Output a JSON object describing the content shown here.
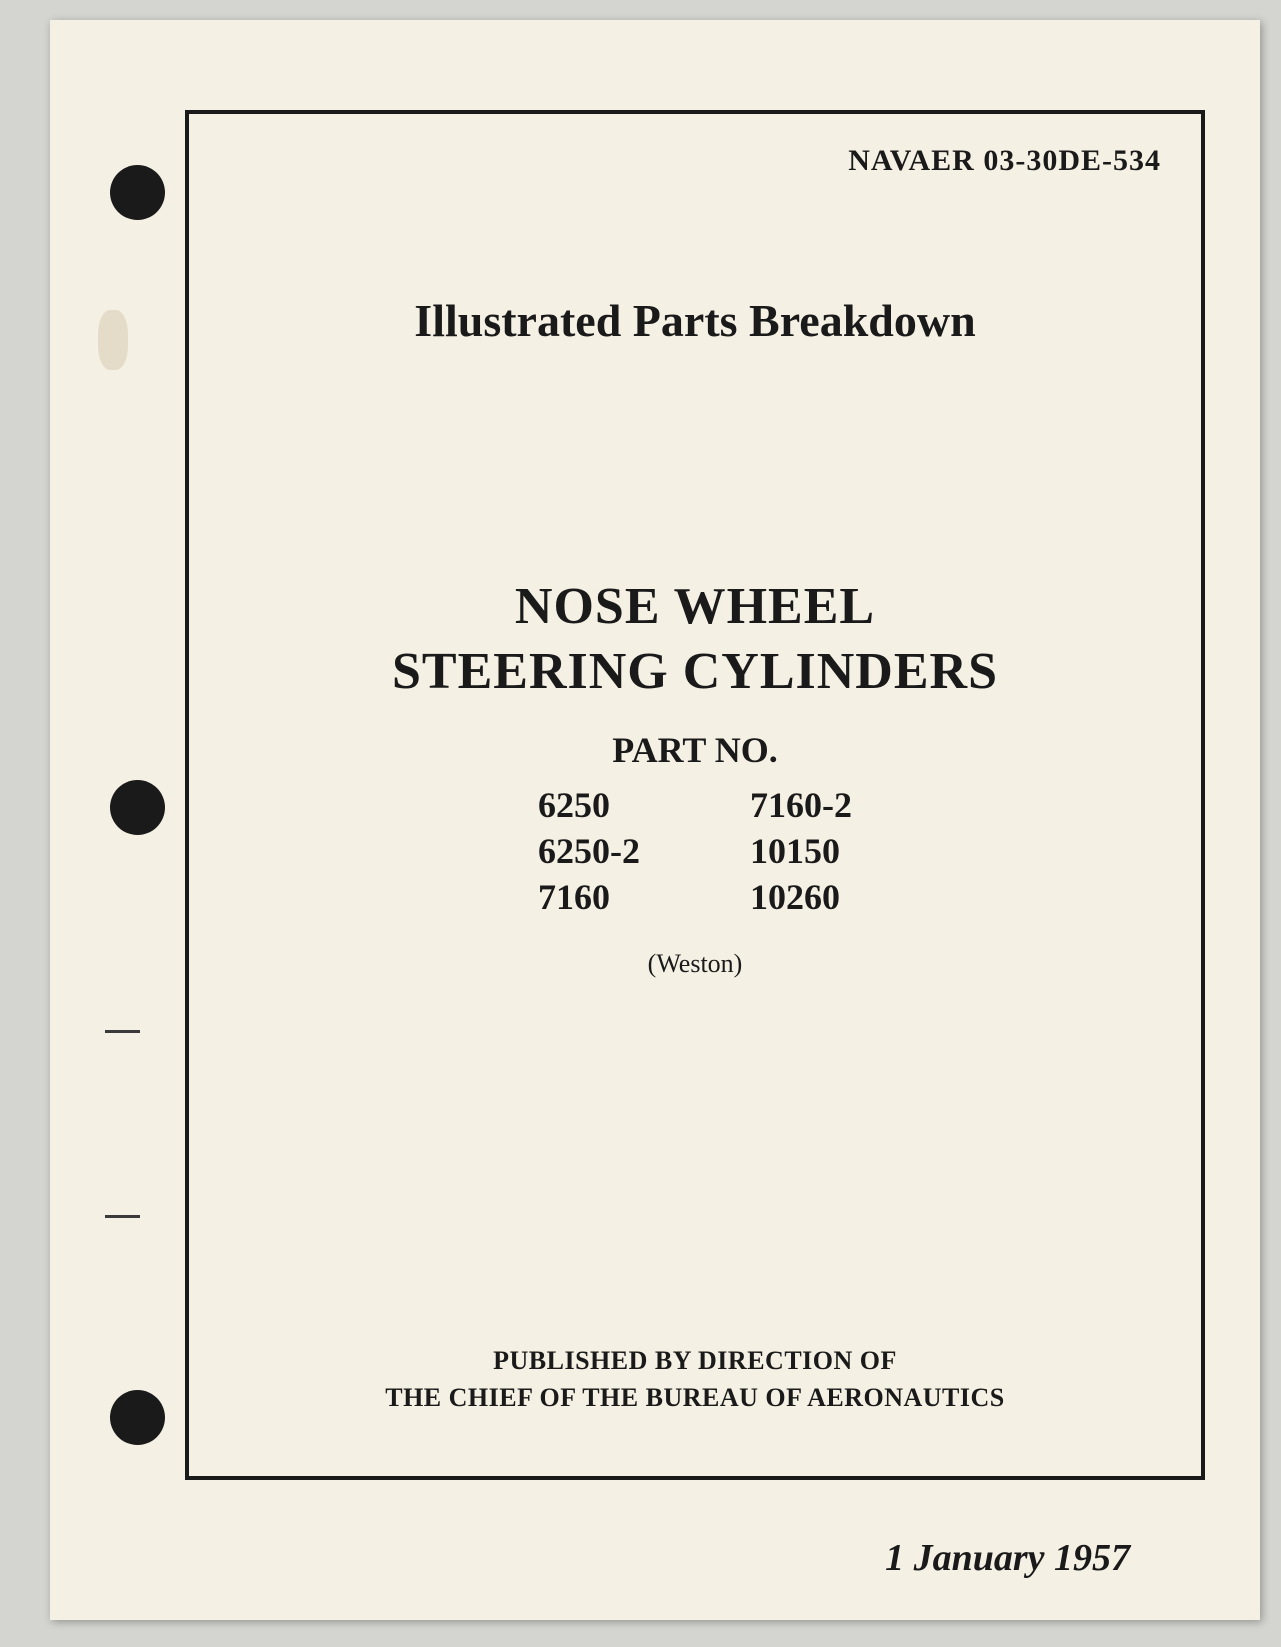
{
  "document": {
    "number": "NAVAER 03-30DE-534",
    "breakdown_title": "Illustrated Parts Breakdown",
    "main_title_line1": "NOSE WHEEL",
    "main_title_line2": "STEERING CYLINDERS",
    "part_no_label": "PART NO.",
    "parts_left": [
      "6250",
      "6250-2",
      "7160"
    ],
    "parts_right": [
      "7160-2",
      "10150",
      "10260"
    ],
    "manufacturer": "(Weston)",
    "publisher_line1": "PUBLISHED BY DIRECTION OF",
    "publisher_line2": "THE CHIEF OF THE BUREAU OF AERONAUTICS",
    "date": "1 January 1957"
  },
  "styling": {
    "page_bg": "#f5f0e4",
    "body_bg": "#d4d4d0",
    "text_color": "#1a1a1a",
    "hole_color": "#1a1a1a",
    "border_width": 4,
    "title_fontsize": 52,
    "breakdown_fontsize": 46,
    "part_fontsize": 36,
    "doc_number_fontsize": 30,
    "publisher_fontsize": 26,
    "date_fontsize": 38
  }
}
